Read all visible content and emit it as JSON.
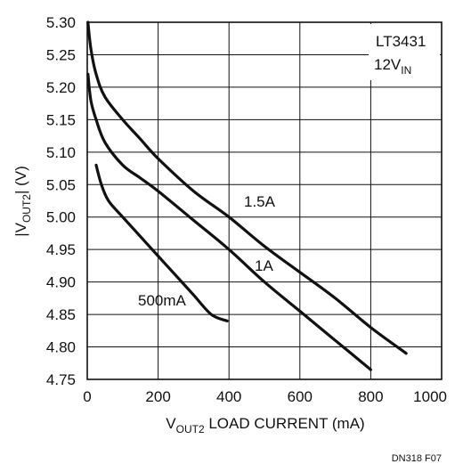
{
  "chart_data": {
    "type": "line",
    "xlabel": {
      "main": "V",
      "sub": "OUT2",
      "rest": " LOAD CURRENT (mA)"
    },
    "ylabel": {
      "pre": "|V",
      "sub": "OUT2",
      "post": "| (V)"
    },
    "xlim": [
      0,
      1000
    ],
    "ylim": [
      4.75,
      5.3
    ],
    "xticks": [
      "0",
      "200",
      "400",
      "600",
      "800",
      "1000"
    ],
    "yticks": [
      "4.75",
      "4.80",
      "4.85",
      "4.90",
      "4.95",
      "5.00",
      "5.05",
      "5.10",
      "5.15",
      "5.20",
      "5.25",
      "5.30"
    ],
    "grid": true,
    "annotation": {
      "line1": "LT3431",
      "line2_main": "12V",
      "line2_sub": "IN"
    },
    "footer": "DN318 F07",
    "series": [
      {
        "name": "500mA",
        "x": [
          25,
          40,
          60,
          100,
          150,
          200,
          250,
          300,
          350,
          395
        ],
        "y": [
          5.08,
          5.05,
          5.025,
          5.0,
          4.97,
          4.94,
          4.91,
          4.88,
          4.85,
          4.84
        ]
      },
      {
        "name": "1A",
        "x": [
          2,
          10,
          25,
          50,
          100,
          150,
          200,
          300,
          400,
          500,
          600,
          700,
          800
        ],
        "y": [
          5.22,
          5.18,
          5.15,
          5.115,
          5.08,
          5.06,
          5.04,
          4.995,
          4.95,
          4.9,
          4.855,
          4.81,
          4.765
        ]
      },
      {
        "name": "1.5A",
        "x": [
          2,
          10,
          25,
          50,
          100,
          150,
          200,
          300,
          400,
          500,
          600,
          700,
          800,
          900
        ],
        "y": [
          5.3,
          5.26,
          5.22,
          5.185,
          5.15,
          5.12,
          5.09,
          5.04,
          5.0,
          4.955,
          4.915,
          4.875,
          4.83,
          4.79
        ]
      }
    ],
    "series_labels": [
      "500mA",
      "1A",
      "1.5A"
    ]
  }
}
